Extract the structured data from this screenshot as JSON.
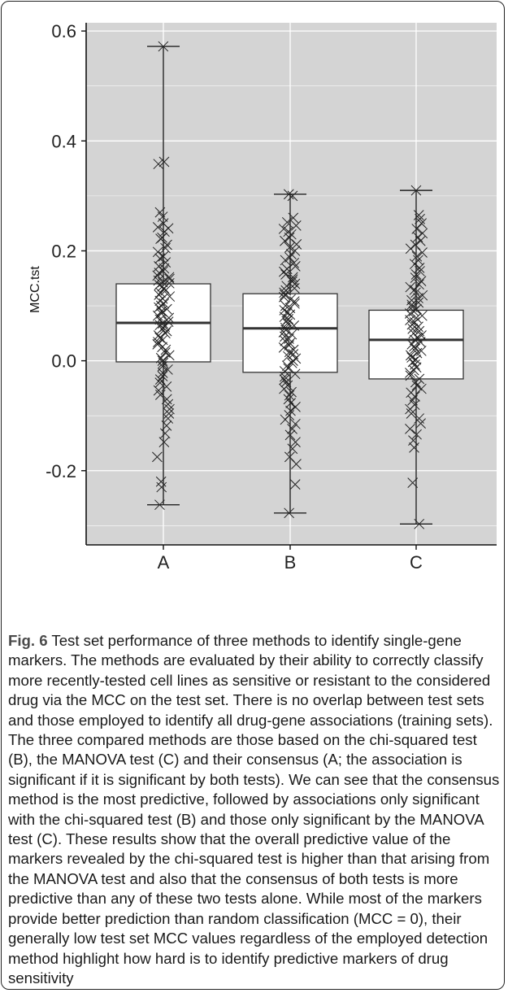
{
  "chart_data": {
    "type": "box",
    "ylabel": "MCC.tst",
    "xlabel": "",
    "ylim": [
      -0.335,
      0.615
    ],
    "yticks": [
      -0.2,
      0.0,
      0.2,
      0.4,
      0.6
    ],
    "ytick_labels": [
      "-0.2",
      "0.0",
      "0.2",
      "0.4",
      "0.6"
    ],
    "grid": true,
    "background": "#d4d4d4",
    "categories": [
      "A",
      "B",
      "C"
    ],
    "boxes": [
      {
        "name": "A",
        "min": -0.262,
        "q1": -0.002,
        "median": 0.069,
        "q3": 0.14,
        "max": 0.572
      },
      {
        "name": "B",
        "min": -0.277,
        "q1": -0.021,
        "median": 0.059,
        "q3": 0.122,
        "max": 0.303
      },
      {
        "name": "C",
        "min": -0.297,
        "q1": -0.033,
        "median": 0.038,
        "q3": 0.092,
        "max": 0.31
      }
    ],
    "points": {
      "A": [
        0.572,
        0.362,
        0.358,
        0.27,
        0.262,
        0.25,
        0.243,
        0.241,
        0.235,
        0.224,
        0.222,
        0.211,
        0.205,
        0.198,
        0.19,
        0.186,
        0.179,
        0.172,
        0.168,
        0.163,
        0.16,
        0.155,
        0.152,
        0.149,
        0.146,
        0.143,
        0.141,
        0.138,
        0.135,
        0.132,
        0.128,
        0.124,
        0.12,
        0.117,
        0.113,
        0.109,
        0.104,
        0.1,
        0.097,
        0.094,
        0.09,
        0.086,
        0.082,
        0.078,
        0.075,
        0.071,
        0.068,
        0.065,
        0.062,
        0.058,
        0.054,
        0.05,
        0.046,
        0.042,
        0.038,
        0.034,
        0.03,
        0.025,
        0.02,
        0.015,
        0.01,
        0.005,
        0.0,
        -0.004,
        -0.01,
        -0.016,
        -0.022,
        -0.028,
        -0.034,
        -0.04,
        -0.047,
        -0.054,
        -0.062,
        -0.07,
        -0.079,
        -0.088,
        -0.096,
        -0.105,
        -0.118,
        -0.132,
        -0.148,
        -0.175,
        -0.22,
        -0.23,
        -0.262
      ],
      "B": [
        0.303,
        0.3,
        0.26,
        0.252,
        0.246,
        0.24,
        0.235,
        0.23,
        0.224,
        0.218,
        0.212,
        0.206,
        0.2,
        0.194,
        0.188,
        0.183,
        0.178,
        0.172,
        0.167,
        0.162,
        0.157,
        0.152,
        0.148,
        0.144,
        0.14,
        0.136,
        0.132,
        0.128,
        0.124,
        0.12,
        0.116,
        0.112,
        0.108,
        0.104,
        0.1,
        0.096,
        0.092,
        0.088,
        0.084,
        0.08,
        0.076,
        0.072,
        0.068,
        0.064,
        0.06,
        0.056,
        0.052,
        0.048,
        0.044,
        0.04,
        0.036,
        0.032,
        0.028,
        0.024,
        0.02,
        0.016,
        0.012,
        0.008,
        0.004,
        0.0,
        -0.004,
        -0.009,
        -0.014,
        -0.019,
        -0.024,
        -0.029,
        -0.034,
        -0.039,
        -0.045,
        -0.051,
        -0.057,
        -0.063,
        -0.07,
        -0.077,
        -0.084,
        -0.091,
        -0.099,
        -0.107,
        -0.115,
        -0.124,
        -0.135,
        -0.148,
        -0.16,
        -0.175,
        -0.188,
        -0.225,
        -0.277
      ],
      "C": [
        0.31,
        0.265,
        0.258,
        0.25,
        0.24,
        0.232,
        0.225,
        0.218,
        0.211,
        0.204,
        0.197,
        0.19,
        0.183,
        0.176,
        0.169,
        0.163,
        0.157,
        0.151,
        0.145,
        0.139,
        0.134,
        0.129,
        0.124,
        0.119,
        0.114,
        0.11,
        0.106,
        0.102,
        0.098,
        0.094,
        0.09,
        0.086,
        0.082,
        0.078,
        0.074,
        0.07,
        0.066,
        0.062,
        0.058,
        0.054,
        0.05,
        0.046,
        0.042,
        0.038,
        0.034,
        0.03,
        0.026,
        0.022,
        0.018,
        0.014,
        0.01,
        0.006,
        0.002,
        -0.002,
        -0.007,
        -0.012,
        -0.017,
        -0.022,
        -0.027,
        -0.033,
        -0.039,
        -0.045,
        -0.051,
        -0.058,
        -0.065,
        -0.072,
        -0.08,
        -0.088,
        -0.096,
        -0.105,
        -0.114,
        -0.124,
        -0.134,
        -0.145,
        -0.158,
        -0.222,
        -0.297
      ]
    }
  },
  "caption": {
    "label": "Fig. 6",
    "text": "Test set performance of three methods to identify single-gene markers. The methods are evaluated by their ability to correctly classify more recently-tested cell lines as sensitive or resistant to the considered drug via the MCC on the test set. There is no overlap between test sets and those employed to identify all drug-gene associations (training sets). The three compared methods are those based on the chi-squared test (B), the MANOVA test (C) and their consensus (A; the association is significant if it is significant by both tests). We can see that the consensus method is the most predictive, followed by associations only significant with the chi-squared test (B) and those only significant by the MANOVA test (C). These results show that the overall predictive value of the markers revealed by the chi-squared test is higher than that arising from the MANOVA test and also that the consensus of both tests is more predictive than any of these two tests alone. While most of the markers provide better prediction than random classification (MCC = 0), their generally low test set MCC values regardless of the employed detection method highlight how hard is to identify predictive markers of drug sensitivity"
  }
}
